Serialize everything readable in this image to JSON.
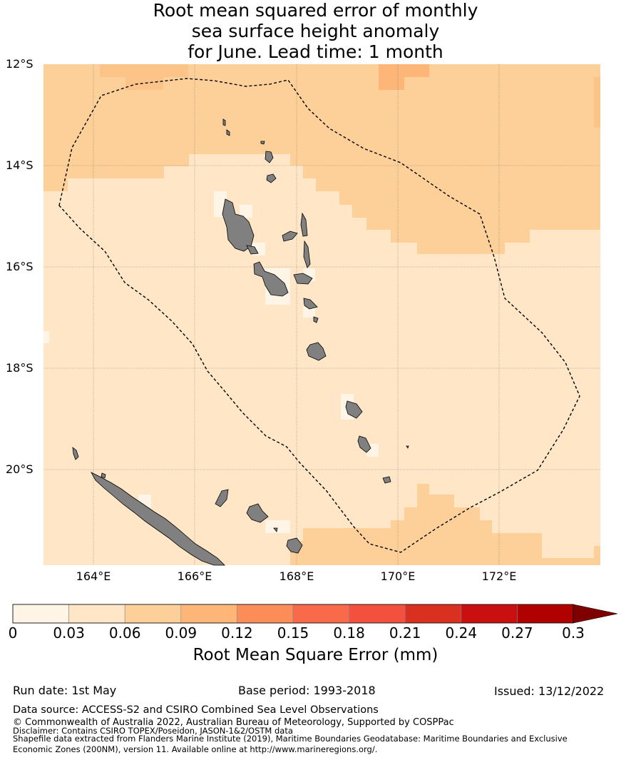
{
  "title": {
    "line1": "Root mean squared error of monthly",
    "line2": "sea surface height anomaly",
    "line3": "for June. Lead time: 1 month"
  },
  "map": {
    "lat_labels": [
      "12°S",
      "14°S",
      "16°S",
      "18°S",
      "20°S"
    ],
    "lon_labels": [
      "164°E",
      "166°E",
      "168°E",
      "170°E",
      "172°E"
    ],
    "land_color": "#808080",
    "boundary_style": "dashed",
    "extent": {
      "lon": [
        163,
        174
      ],
      "lat": [
        -22,
        -12
      ]
    }
  },
  "colorbar": {
    "ticks": [
      "0",
      "0.03",
      "0.06",
      "0.09",
      "0.12",
      "0.15",
      "0.18",
      "0.21",
      "0.24",
      "0.27",
      "0.3"
    ],
    "colors": [
      "#fff5e6",
      "#fee6c6",
      "#fdd09a",
      "#fdb678",
      "#fc8d59",
      "#f96a4a",
      "#f4503e",
      "#d9301f",
      "#c90f10",
      "#b00000",
      "#7f0000"
    ],
    "extend": "max",
    "label": "Root Mean Square Error (mm)"
  },
  "footer": {
    "run_date": "Run date: 1st May",
    "base_period": "Base period: 1993-2018",
    "issued": "Issued: 13/12/2022",
    "data_source": "Data source: ACCESS-S2 and CSIRO Combined Sea Level Observations",
    "copyright": "© Commonwealth of Australia 2022, Australian Bureau of Meteorology, Supported by COSPPac",
    "disclaimer": "Disclaimer: Contains CSIRO TOPEX/Poseidon, JASON-1&2/OSTM data",
    "shapefile": "Shapefile data extracted from Flanders Marine Institute (2019), Maritime Boundaries Geodatabase: Maritime Boundaries and Exclusive Economic Zones (200NM), version 11. Available online at http://www.marineregions.org/."
  }
}
